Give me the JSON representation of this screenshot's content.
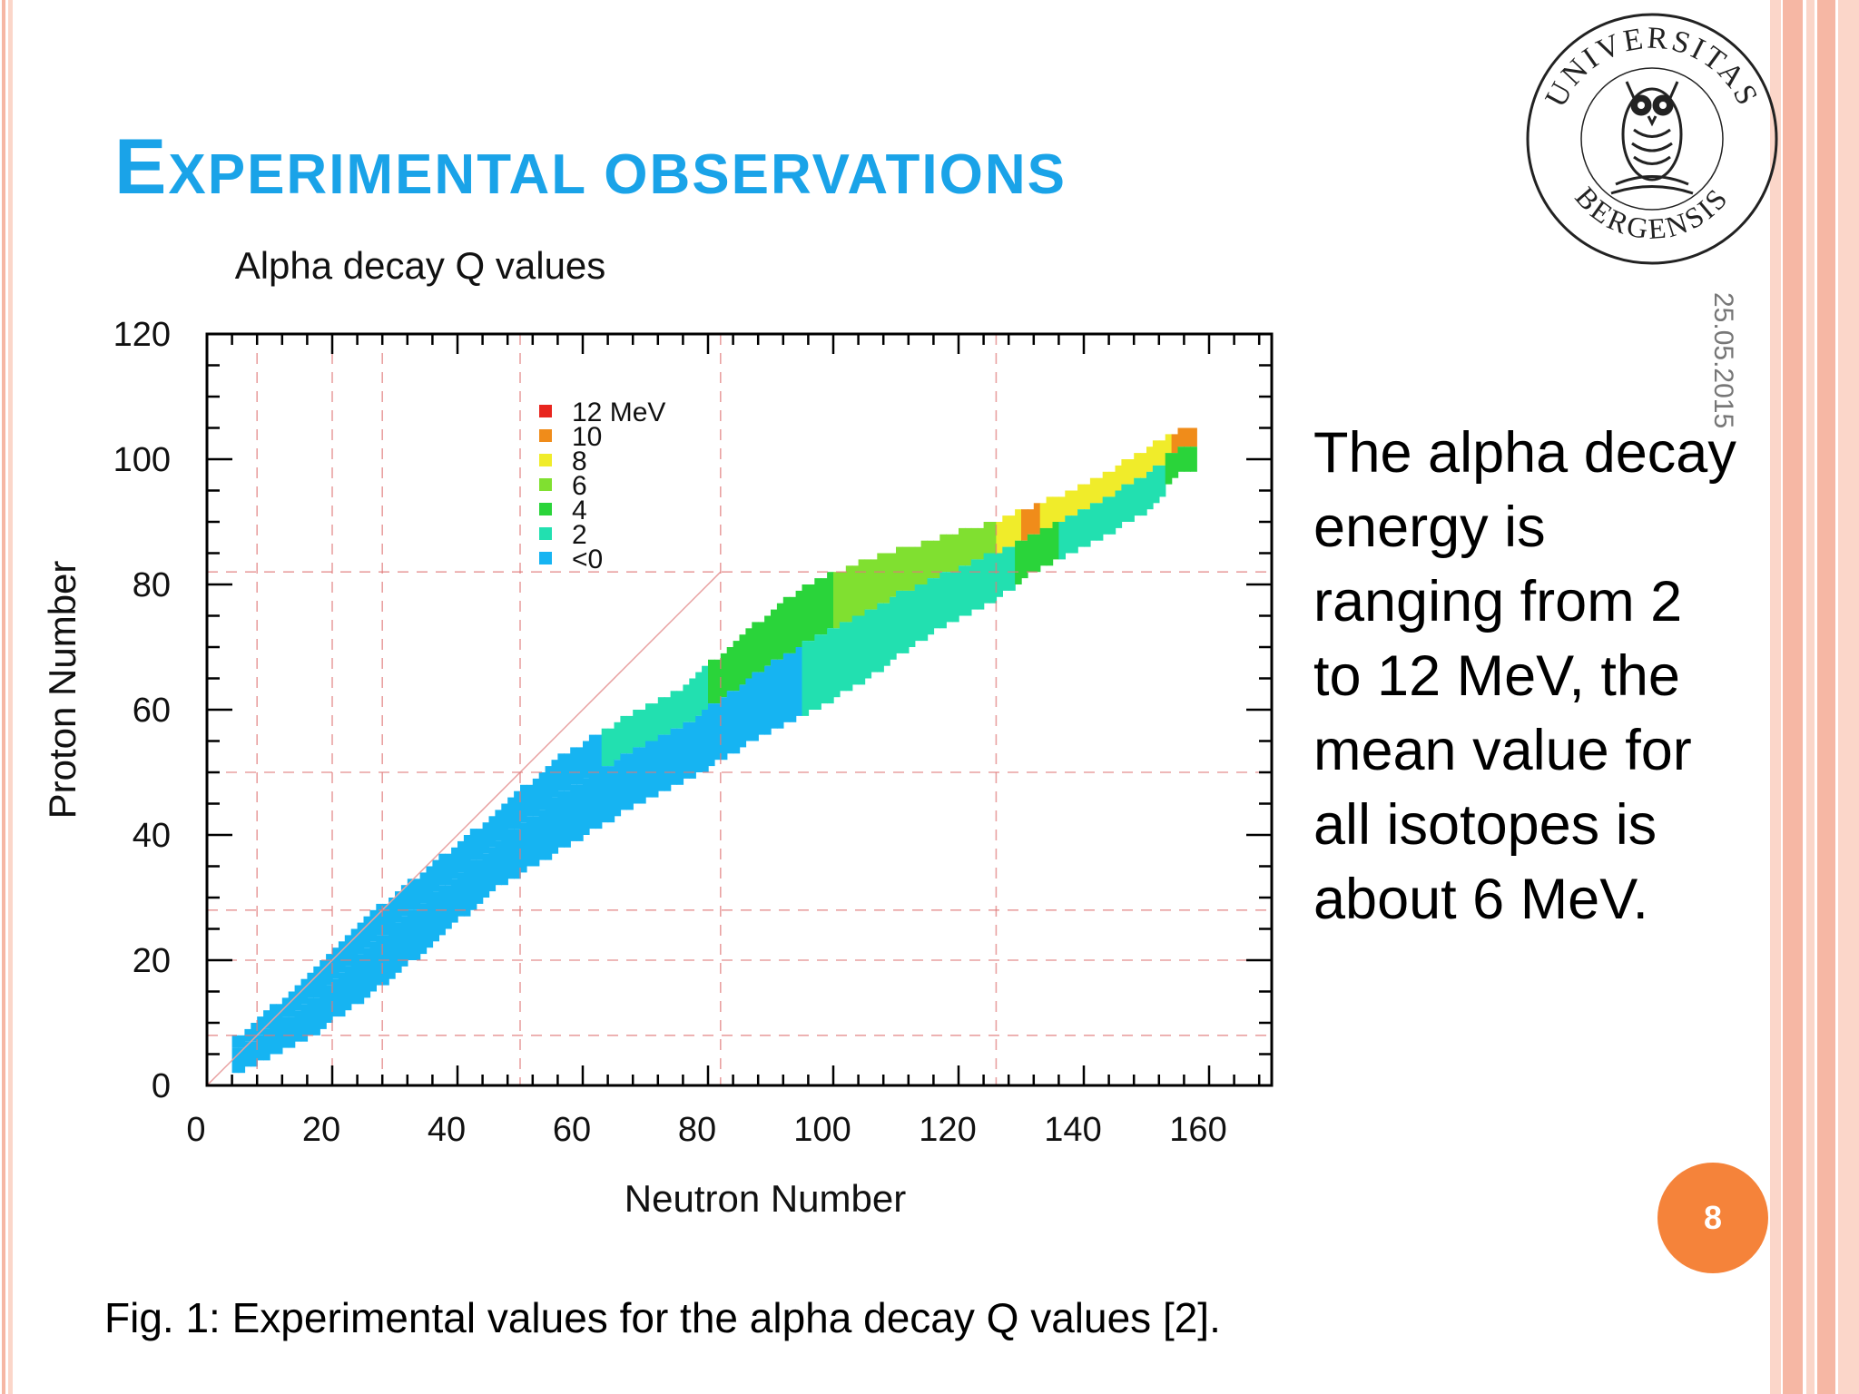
{
  "slide": {
    "title_first": "E",
    "title_rest": "XPERIMENTAL OBSERVATIONS",
    "date": "25.05.2015",
    "body_text": "The alpha decay energy is ranging from 2 to 12 MeV, the mean value for all isotopes is about 6 MeV.",
    "caption": "Fig. 1: Experimental values for the alpha decay Q values [2].",
    "page_number": "8",
    "seal_text_top": "UNIVERSITAS",
    "seal_text_bottom": "BERGENSIS",
    "colors": {
      "title": "#1aa3e8",
      "badge": "#f5833a",
      "stripe_pink": "#f6b7a4",
      "stripe_light": "#fbd6c9"
    }
  },
  "chart_data": {
    "type": "heatmap",
    "title": "Alpha decay Q values",
    "xlabel": "Neutron Number",
    "ylabel": "Proton Number",
    "xlim": [
      0,
      170
    ],
    "ylim": [
      0,
      120
    ],
    "xticks": [
      0,
      20,
      40,
      60,
      80,
      100,
      120,
      140,
      160
    ],
    "yticks": [
      0,
      20,
      40,
      60,
      80,
      100,
      120
    ],
    "legend": {
      "placement": "top-center",
      "entries": [
        {
          "label": "12 MeV",
          "color": "#e8251e"
        },
        {
          "label": "10",
          "color": "#f08c1a"
        },
        {
          "label": "8",
          "color": "#f0ec2a"
        },
        {
          "label": "6",
          "color": "#80e030"
        },
        {
          "label": "4",
          "color": "#2ad43a"
        },
        {
          "label": "2",
          "color": "#22e0b0"
        },
        {
          "label": "<0",
          "color": "#16b4f2"
        }
      ]
    },
    "magic_numbers": {
      "neutron": [
        8,
        20,
        28,
        50,
        82,
        126
      ],
      "proton": [
        8,
        20,
        28,
        50,
        82
      ]
    },
    "band_sample": [
      {
        "n": 5,
        "z_min": 2,
        "z_max": 7,
        "q": -2
      },
      {
        "n": 15,
        "z_min": 7,
        "z_max": 16,
        "q": -2
      },
      {
        "n": 25,
        "z_min": 14,
        "z_max": 26,
        "q": -2
      },
      {
        "n": 35,
        "z_min": 22,
        "z_max": 34,
        "q": -2
      },
      {
        "n": 45,
        "z_min": 31,
        "z_max": 42,
        "q": -1
      },
      {
        "n": 55,
        "z_min": 37,
        "z_max": 51,
        "q": -1
      },
      {
        "n": 65,
        "z_min": 43,
        "z_max": 57,
        "q": 1
      },
      {
        "n": 75,
        "z_min": 48,
        "z_max": 62,
        "q": 2
      },
      {
        "n": 85,
        "z_min": 54,
        "z_max": 71,
        "q": 3
      },
      {
        "n": 95,
        "z_min": 59,
        "z_max": 79,
        "q": 4
      },
      {
        "n": 105,
        "z_min": 65,
        "z_max": 83,
        "q": 5
      },
      {
        "n": 115,
        "z_min": 72,
        "z_max": 86,
        "q": 5
      },
      {
        "n": 125,
        "z_min": 77,
        "z_max": 89,
        "q": 6
      },
      {
        "n": 130,
        "z_min": 81,
        "z_max": 91,
        "q": 9
      },
      {
        "n": 140,
        "z_min": 86,
        "z_max": 95,
        "q": 7
      },
      {
        "n": 150,
        "z_min": 92,
        "z_max": 101,
        "q": 7
      },
      {
        "n": 155,
        "z_min": 98,
        "z_max": 104,
        "q": 9
      }
    ]
  }
}
